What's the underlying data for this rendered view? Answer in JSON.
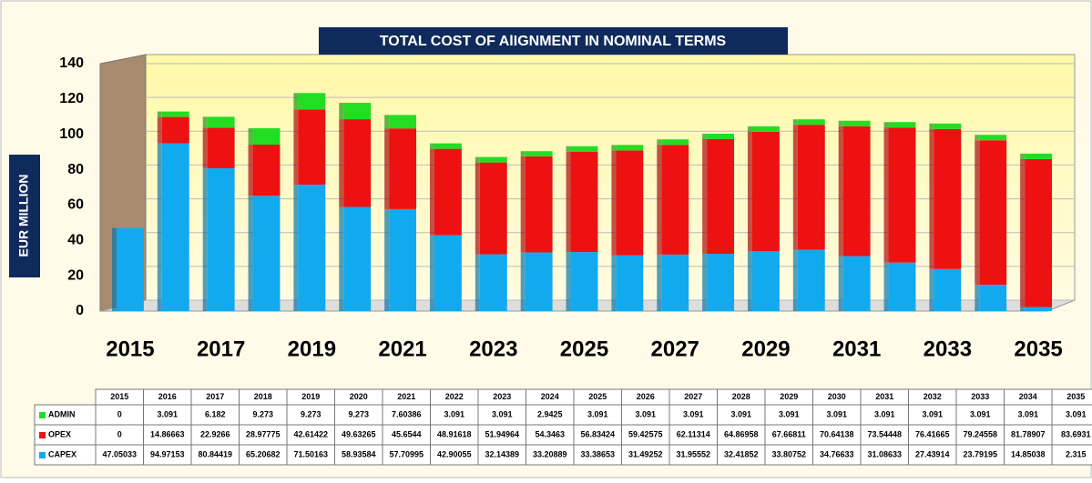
{
  "chart_data": {
    "type": "bar",
    "stacked": true,
    "title": "TOTAL COST OF AlIGNMENT IN NOMINAL TERMS",
    "ylabel": "EUR MILLION",
    "categories": [
      2015,
      2016,
      2017,
      2018,
      2019,
      2020,
      2021,
      2022,
      2023,
      2024,
      2025,
      2026,
      2027,
      2028,
      2029,
      2030,
      2031,
      2032,
      2033,
      2034,
      2035
    ],
    "series": [
      {
        "name": "ADMIN",
        "color": "#22dd22",
        "values": [
          0,
          3.091,
          6.182,
          9.273,
          9.273,
          9.273,
          7.60386,
          3.091,
          3.091,
          2.9425,
          3.091,
          3.091,
          3.091,
          3.091,
          3.091,
          3.091,
          3.091,
          3.091,
          3.091,
          3.091,
          3.091
        ]
      },
      {
        "name": "OPEX",
        "color": "#ee1111",
        "values": [
          0,
          14.86663,
          22.9266,
          28.97775,
          42.61422,
          49.63265,
          45.6544,
          48.91618,
          51.94964,
          54.3463,
          56.83424,
          59.42575,
          62.11314,
          64.86958,
          67.66811,
          70.64138,
          73.54448,
          76.41665,
          79.24558,
          81.78907,
          83.6931
        ]
      },
      {
        "name": "CAPEX",
        "color": "#11aaee",
        "values": [
          47.05033,
          94.97153,
          80.84419,
          65.20682,
          71.50163,
          58.93584,
          57.70995,
          42.90055,
          32.14389,
          33.20889,
          33.38653,
          31.49252,
          31.95552,
          32.41852,
          33.80752,
          34.76633,
          31.08633,
          27.43914,
          23.79195,
          14.85038,
          2.315
        ]
      }
    ],
    "ylim": [
      0,
      140
    ],
    "yticks": [
      0,
      20,
      40,
      60,
      80,
      100,
      120,
      140
    ],
    "grid": true
  }
}
